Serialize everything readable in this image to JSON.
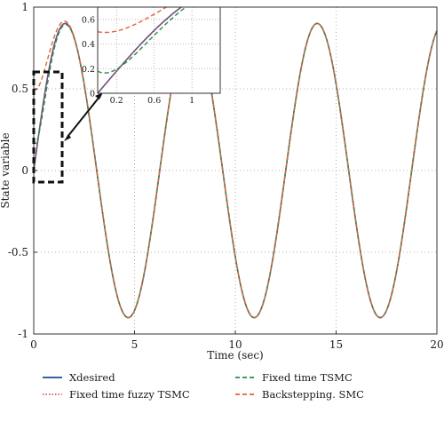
{
  "chart_data": {
    "type": "line",
    "xlabel": "Time (sec)",
    "ylabel": "State variable",
    "xlim": [
      0,
      20
    ],
    "ylim": [
      -1,
      1
    ],
    "x_ticks": [
      "0",
      "5",
      "10",
      "15",
      "20"
    ],
    "y_ticks": [
      "-1",
      "-0.5",
      "0",
      "0.5",
      "1"
    ],
    "grid": true,
    "legend_position": "bottom",
    "series": [
      {
        "name": "Xdesired",
        "color": "#3a5fa8",
        "style": "solid"
      },
      {
        "name": "Fixed time fuzzy TSMC",
        "color": "#d93a3a",
        "style": "dotted"
      },
      {
        "name": "Fixed time TSMC",
        "color": "#2e8b4a",
        "style": "dashed"
      },
      {
        "name": "Backstepping. SMC",
        "color": "#e0643a",
        "style": "dashed"
      }
    ],
    "reference_signal": {
      "amplitude": 0.9,
      "period_sec": 6.25,
      "peaks": [
        [
          1.56,
          0.9
        ],
        [
          7.81,
          0.9
        ],
        [
          14.06,
          0.9
        ]
      ],
      "troughs": [
        [
          4.69,
          -0.9
        ],
        [
          10.94,
          -0.9
        ],
        [
          17.19,
          -0.9
        ]
      ]
    },
    "initial_values": {
      "Xdesired": 0.0,
      "Fixed time fuzzy TSMC": 0.0,
      "Fixed time TSMC": 0.18,
      "Backstepping. SMC": 0.5
    },
    "inset": {
      "xlim": [
        0,
        1.3
      ],
      "ylim": [
        0,
        0.7
      ],
      "x_ticks": [
        "0.2",
        "0.6",
        "1"
      ],
      "y_ticks": [
        "0",
        "0.2",
        "0.4",
        "0.6"
      ],
      "zoom_region": {
        "x": [
          0,
          1
        ],
        "y": [
          0,
          0.5
        ]
      }
    }
  }
}
